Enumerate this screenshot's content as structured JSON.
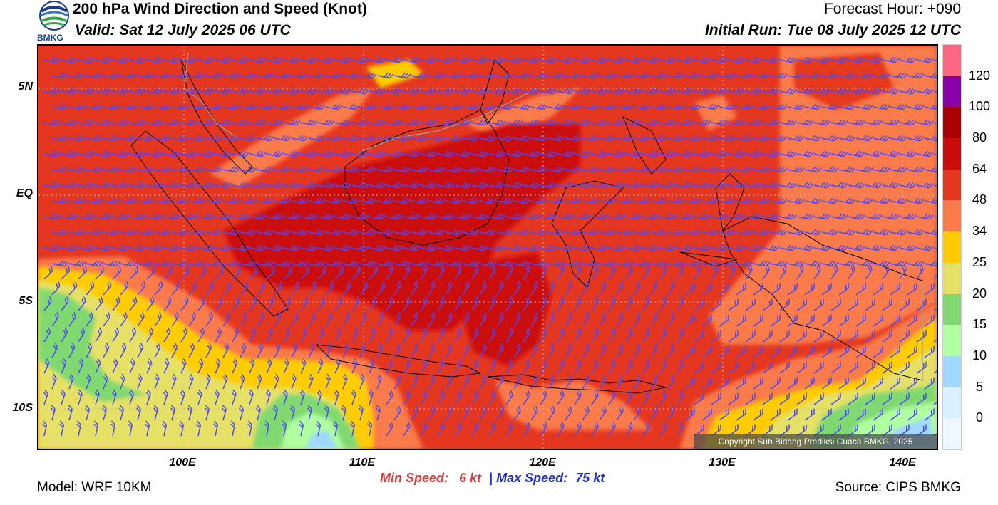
{
  "header": {
    "title": "200 hPa Wind Direction and Speed (Knot)",
    "valid": "Valid: Sat 12 July 2025 06 UTC",
    "forecast_hour": "Forecast Hour: +090",
    "initial_run": "Initial Run: Tue 08 July 2025 12 UTC",
    "logo_text": "BMKG"
  },
  "map": {
    "lat_labels": [
      "5N",
      "EQ",
      "5S",
      "10S"
    ],
    "lon_labels": [
      "100E",
      "110E",
      "120E",
      "130E",
      "140E"
    ],
    "copyright": "Copyright Sub Bidang Prediksi Cuaca BMKG, 2025"
  },
  "stats": {
    "min_label": "Min Speed:",
    "min_value": "6 kt",
    "separator": "|",
    "max_label": "Max Speed:",
    "max_value": "75 kt"
  },
  "footer": {
    "model": "Model: WRF 10KM",
    "source": "Source: CIPS BMKG"
  },
  "colorbar": {
    "labels": [
      "120",
      "100",
      "80",
      "64",
      "48",
      "34",
      "25",
      "20",
      "15",
      "10",
      "5",
      "0"
    ],
    "colors": [
      "#ff6680",
      "#8a00a8",
      "#a80000",
      "#cc0a0a",
      "#e5371f",
      "#fa7a4a",
      "#ffcc00",
      "#e6e066",
      "#80d970",
      "#b0ffa0",
      "#a0d8ff",
      "#d8f0ff",
      "#eef6ff"
    ]
  },
  "colors": {
    "barb": "#4a4aff",
    "coastline": "#000000"
  }
}
